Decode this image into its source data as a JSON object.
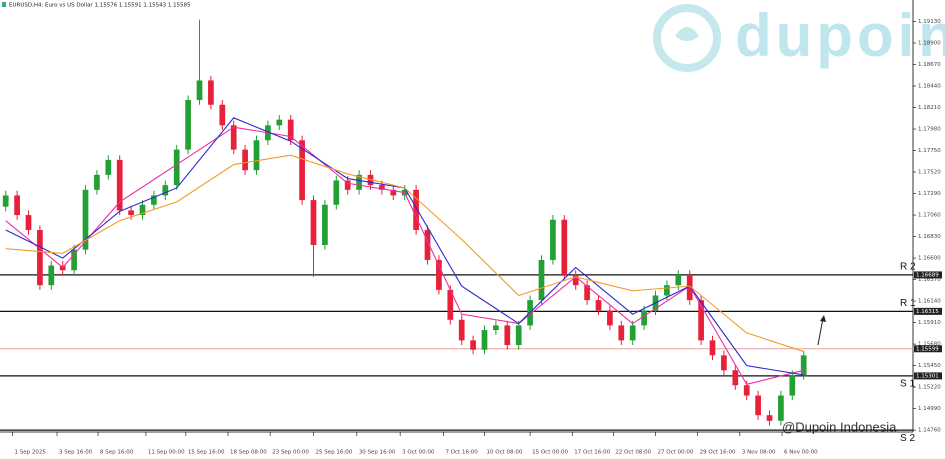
{
  "chart_data": {
    "type": "candlestick",
    "header": "EURUSD,H4:  Euro vs US Dollar  1.15576 1.15591 1.15543 1.15585",
    "watermark": "dupoin",
    "credit": "@Dupoin Indonesia",
    "up_color": "#23a033",
    "down_color": "#e8203a",
    "xlim": [
      -0.5,
      79.5
    ],
    "ylim": [
      1.1474,
      1.1936
    ],
    "xticks": [
      {
        "value": 0.6,
        "label": "1 Sep 2025"
      },
      {
        "value": 4.5,
        "label": "3 Sep 16:00"
      },
      {
        "value": 8.1,
        "label": "8 Sep 16:00"
      },
      {
        "value": 12.3,
        "label": "11 Sep 00:00"
      },
      {
        "value": 15.8,
        "label": "15 Sep 16:00"
      },
      {
        "value": 19.5,
        "label": "18 Sep 08:00"
      },
      {
        "value": 23.2,
        "label": "23 Sep 00:00"
      },
      {
        "value": 27.0,
        "label": "25 Sep 16:00"
      },
      {
        "value": 30.8,
        "label": "30 Sep 16:00"
      },
      {
        "value": 34.6,
        "label": "3 Oct 00:00"
      },
      {
        "value": 38.4,
        "label": "7 Oct 16:00"
      },
      {
        "value": 42.0,
        "label": "10 Oct 08:00"
      },
      {
        "value": 46.0,
        "label": "15 Oct 00:00"
      },
      {
        "value": 49.7,
        "label": "17 Oct 16:00"
      },
      {
        "value": 53.3,
        "label": "22 Oct 08:00"
      },
      {
        "value": 57.0,
        "label": "27 Oct 00:00"
      },
      {
        "value": 60.7,
        "label": "29 Oct 16:00"
      },
      {
        "value": 64.4,
        "label": "3 Nov 08:00"
      },
      {
        "value": 68.1,
        "label": "6 Nov 00:00"
      }
    ],
    "yticks": [
      {
        "value": 1.1476,
        "label": "1.14760"
      },
      {
        "value": 1.1499,
        "label": "1.14990"
      },
      {
        "value": 1.1522,
        "label": "1.15220"
      },
      {
        "value": 1.1545,
        "label": "1.15450"
      },
      {
        "value": 1.1568,
        "label": "1.15680"
      },
      {
        "value": 1.1591,
        "label": "1.15910"
      },
      {
        "value": 1.1614,
        "label": "1.16140"
      },
      {
        "value": 1.1637,
        "label": "1.16370"
      },
      {
        "value": 1.166,
        "label": "1.16600"
      },
      {
        "value": 1.1683,
        "label": "1.16830"
      },
      {
        "value": 1.1706,
        "label": "1.17060"
      },
      {
        "value": 1.1729,
        "label": "1.17290"
      },
      {
        "value": 1.1752,
        "label": "1.17520"
      },
      {
        "value": 1.1775,
        "label": "1.17750"
      },
      {
        "value": 1.1798,
        "label": "1.17980"
      },
      {
        "value": 1.1821,
        "label": "1.18210"
      },
      {
        "value": 1.1844,
        "label": "1.18440"
      },
      {
        "value": 1.1867,
        "label": "1.18670"
      },
      {
        "value": 1.189,
        "label": "1.18900"
      },
      {
        "value": 1.1913,
        "label": "1.19130"
      }
    ],
    "open": [
      1.1715,
      1.1727,
      1.1706,
      1.169,
      1.1631,
      1.1652,
      1.1647,
      1.1669,
      1.1733,
      1.1749,
      1.1765,
      1.1711,
      1.1706,
      1.1717,
      1.1727,
      1.1738,
      1.1776,
      1.1829,
      1.185,
      1.1824,
      1.1802,
      1.1776,
      1.1754,
      1.1786,
      1.1802,
      1.1808,
      1.1786,
      1.1722,
      1.1674,
      1.1717,
      1.1743,
      1.1733,
      1.1749,
      1.1738,
      1.1733,
      1.1727,
      1.1733,
      1.169,
      1.1658,
      1.1626,
      1.1594,
      1.1572,
      1.1562,
      1.1583,
      1.1588,
      1.1567,
      1.1588,
      1.1615,
      1.1658,
      1.1701,
      1.1642,
      1.1631,
      1.1615,
      1.1604,
      1.1588,
      1.1572,
      1.1588,
      1.1604,
      1.162,
      1.1631,
      1.1642,
      1.1615,
      1.1572,
      1.1556,
      1.154,
      1.1524,
      1.1513,
      1.1492,
      1.1486,
      1.1513,
      1.1535
    ],
    "high": [
      1.1732,
      1.1732,
      1.1711,
      1.1695,
      1.1657,
      1.1657,
      1.1674,
      1.1738,
      1.1754,
      1.177,
      1.177,
      1.1716,
      1.1722,
      1.1732,
      1.1743,
      1.1781,
      1.1834,
      1.1915,
      1.1855,
      1.1829,
      1.1807,
      1.1781,
      1.1791,
      1.1807,
      1.1813,
      1.1813,
      1.1791,
      1.1727,
      1.1722,
      1.1748,
      1.1748,
      1.1754,
      1.1754,
      1.1743,
      1.1738,
      1.1738,
      1.1738,
      1.1695,
      1.1663,
      1.1631,
      1.1599,
      1.1577,
      1.1588,
      1.1593,
      1.1593,
      1.1593,
      1.162,
      1.1663,
      1.1706,
      1.1706,
      1.1647,
      1.1636,
      1.162,
      1.1609,
      1.1593,
      1.1593,
      1.1609,
      1.1625,
      1.1636,
      1.1647,
      1.1647,
      1.162,
      1.1577,
      1.1561,
      1.1545,
      1.1529,
      1.1518,
      1.1497,
      1.1518,
      1.154,
      1.1561
    ],
    "low": [
      1.171,
      1.1701,
      1.1685,
      1.1626,
      1.1626,
      1.1642,
      1.1642,
      1.1664,
      1.1728,
      1.1744,
      1.1706,
      1.1701,
      1.1701,
      1.1712,
      1.1722,
      1.1733,
      1.1771,
      1.1824,
      1.1819,
      1.1797,
      1.1771,
      1.1749,
      1.1749,
      1.1781,
      1.1797,
      1.1781,
      1.1717,
      1.164,
      1.1669,
      1.1712,
      1.1728,
      1.1728,
      1.1733,
      1.1728,
      1.1722,
      1.1722,
      1.1685,
      1.1653,
      1.1621,
      1.1589,
      1.1567,
      1.1557,
      1.1557,
      1.1578,
      1.1562,
      1.1562,
      1.1583,
      1.161,
      1.1653,
      1.1637,
      1.1626,
      1.161,
      1.1599,
      1.1583,
      1.1567,
      1.1567,
      1.1583,
      1.1599,
      1.1615,
      1.1626,
      1.161,
      1.1567,
      1.1551,
      1.1535,
      1.1519,
      1.1508,
      1.1487,
      1.1481,
      1.1481,
      1.1508,
      1.153
    ],
    "close": [
      1.1727,
      1.1706,
      1.169,
      1.1631,
      1.1652,
      1.1647,
      1.1669,
      1.1733,
      1.1749,
      1.1765,
      1.1711,
      1.1706,
      1.1717,
      1.1727,
      1.1738,
      1.1776,
      1.1829,
      1.185,
      1.1824,
      1.1802,
      1.1776,
      1.1754,
      1.1786,
      1.1802,
      1.1808,
      1.1786,
      1.1722,
      1.1674,
      1.1717,
      1.1743,
      1.1733,
      1.1749,
      1.1738,
      1.1733,
      1.1727,
      1.1733,
      1.169,
      1.1658,
      1.1626,
      1.1594,
      1.1572,
      1.1562,
      1.1583,
      1.1588,
      1.1567,
      1.1588,
      1.1615,
      1.1658,
      1.1701,
      1.1642,
      1.1631,
      1.1615,
      1.1604,
      1.1588,
      1.1572,
      1.1588,
      1.1604,
      1.162,
      1.1631,
      1.1642,
      1.1615,
      1.1572,
      1.1556,
      1.154,
      1.1524,
      1.1513,
      1.1492,
      1.1486,
      1.1513,
      1.1535,
      1.1556
    ],
    "lines": [
      {
        "color": "#ee2fa0",
        "x": [
          0,
          5,
          10,
          15,
          20,
          25,
          30,
          35,
          40,
          45,
          50,
          55,
          60,
          65,
          70
        ],
        "values": [
          1.17,
          1.165,
          1.172,
          1.176,
          1.18,
          1.179,
          1.174,
          1.173,
          1.16,
          1.159,
          1.164,
          1.159,
          1.163,
          1.1525,
          1.154
        ]
      },
      {
        "color": "#2a2ad0",
        "x": [
          0,
          5,
          10,
          15,
          20,
          25,
          30,
          35,
          40,
          45,
          50,
          55,
          60,
          65,
          70
        ],
        "values": [
          1.169,
          1.166,
          1.171,
          1.1735,
          1.181,
          1.1785,
          1.1745,
          1.1735,
          1.163,
          1.159,
          1.165,
          1.16,
          1.163,
          1.1545,
          1.1535
        ]
      },
      {
        "color": "#f39a2a",
        "x": [
          0,
          5,
          10,
          15,
          20,
          25,
          30,
          35,
          40,
          45,
          50,
          55,
          60,
          65,
          70
        ],
        "values": [
          1.167,
          1.1665,
          1.17,
          1.172,
          1.176,
          1.177,
          1.175,
          1.1735,
          1.168,
          1.162,
          1.164,
          1.1625,
          1.163,
          1.158,
          1.156
        ]
      }
    ],
    "levels": [
      {
        "name": "R 2",
        "value": 1.1642,
        "tag": "1.16689"
      },
      {
        "name": "R 1",
        "value": 1.1603,
        "tag": "1.16315"
      },
      {
        "name": "S 1",
        "value": 1.1534,
        "tag": "1.15301"
      },
      {
        "name": "S 2",
        "value": 1.1476
      }
    ],
    "price_line": {
      "value": 1.1563,
      "tag": "1.15599",
      "color": "#e8a0a0"
    }
  }
}
